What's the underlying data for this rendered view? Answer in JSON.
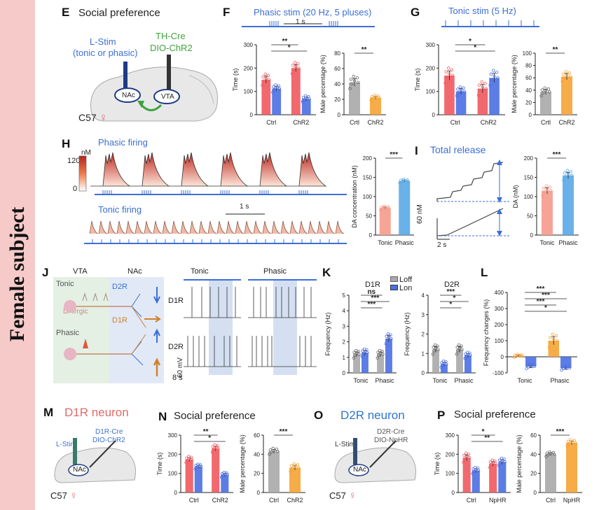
{
  "sidebar": {
    "title": "Female subject"
  },
  "panels": {
    "E": {
      "letter": "E",
      "title": "Social preference",
      "lstim": "L-Stim",
      "lstim_sub": "(tonic or phasic)",
      "cre": "TH-Cre",
      "dio": "DIO-ChR2",
      "nac": "NAc",
      "vta": "VTA",
      "mouse": "C57"
    },
    "F": {
      "letter": "F",
      "title": "Phasic stim (20 Hz, 5 pluses)",
      "scale": "1 s"
    },
    "G": {
      "letter": "G",
      "title": "Tonic stim (5 Hz)"
    },
    "H": {
      "letter": "H",
      "title": "Phasic firing",
      "unit": "nM",
      "cmax": "120",
      "cmin": "0",
      "tonic_title": "Tonic firing",
      "scale": "1 s"
    },
    "I": {
      "letter": "I",
      "title": "Total release",
      "scale_y": "60 nM",
      "scale_x": "2 s"
    },
    "J": {
      "letter": "J",
      "vta": "VTA",
      "nac": "NAc",
      "tonic": "Tonic",
      "phasic": "Phasic",
      "d2r": "D2R",
      "d1r": "D1R",
      "daergic": "DAergic",
      "col_tonic": "Tonic",
      "col_phasic": "Phasic",
      "row1": "D1R",
      "row2": "D2R",
      "scale_y": "60 mV",
      "scale_x": "8 s"
    },
    "K": {
      "letter": "K",
      "legend_off": "Loff",
      "legend_on": "Lon"
    },
    "L": {
      "letter": "L"
    },
    "M": {
      "letter": "M",
      "title": "D1R neuron",
      "lstim": "L-Stim",
      "cre": "D1R-Cre",
      "dio": "DIO-ChR2",
      "nac": "NAc",
      "mouse": "C57"
    },
    "N": {
      "letter": "N",
      "title": "Social preference"
    },
    "O": {
      "letter": "O",
      "title": "D2R neuron",
      "lstim": "L-Stim",
      "cre": "D2R-Cre",
      "dio": "DIO-NpHR",
      "nac": "NAc",
      "mouse": "C57"
    },
    "P": {
      "letter": "P",
      "title": "Social preference"
    }
  },
  "colors": {
    "red": "#f0595e",
    "blue": "#4a6fe3",
    "grey": "#a9a9a9",
    "orange": "#f5a334",
    "lightblue": "#59a8e6",
    "salmon": "#f59a8a"
  },
  "chart_data": [
    {
      "id": "F-time",
      "type": "bar",
      "categories": [
        "Ctrl",
        "ChR2"
      ],
      "ylabel": "Time (s)",
      "ylim": [
        0,
        300
      ],
      "yticks": [
        0,
        100,
        200,
        300
      ],
      "series": [
        {
          "values": [
            150,
            200
          ],
          "errors": [
            15,
            15
          ],
          "color": "#f0595e"
        },
        {
          "values": [
            112,
            68
          ],
          "errors": [
            10,
            8
          ],
          "color": "#4a6fe3"
        }
      ],
      "sig": [
        "**",
        "*"
      ]
    },
    {
      "id": "F-male",
      "type": "bar",
      "categories": [
        "Crtl",
        "ChR2"
      ],
      "ylabel": "Male percentage (%)",
      "ylim": [
        0,
        80
      ],
      "yticks": [
        0,
        20,
        40,
        60,
        80
      ],
      "series": [
        {
          "values": [
            42,
            22
          ],
          "errors": [
            5,
            2
          ],
          "colors": [
            "#a9a9a9",
            "#f5a334"
          ]
        }
      ],
      "sig": [
        "**"
      ]
    },
    {
      "id": "G-time",
      "type": "bar",
      "categories": [
        "Ctrl",
        "ChR2"
      ],
      "ylabel": "Time (s)",
      "ylim": [
        0,
        300
      ],
      "yticks": [
        0,
        100,
        200,
        300
      ],
      "series": [
        {
          "values": [
            168,
            112
          ],
          "errors": [
            20,
            18
          ],
          "color": "#f0595e"
        },
        {
          "values": [
            100,
            158
          ],
          "errors": [
            12,
            20
          ],
          "color": "#4a6fe3"
        }
      ],
      "sig": [
        "*",
        "*"
      ]
    },
    {
      "id": "G-male",
      "type": "bar",
      "categories": [
        "Crtl",
        "ChR2"
      ],
      "ylabel": "Male percentage (%)",
      "ylim": [
        0,
        100
      ],
      "yticks": [
        0,
        20,
        40,
        60,
        80,
        100
      ],
      "series": [
        {
          "values": [
            37,
            62
          ],
          "errors": [
            4,
            5
          ],
          "colors": [
            "#a9a9a9",
            "#f5a334"
          ]
        }
      ],
      "sig": [
        "**"
      ]
    },
    {
      "id": "H-conc",
      "type": "bar",
      "categories": [
        "Tonic",
        "Phasic"
      ],
      "ylabel": "DA concentration (nM)",
      "ylim": [
        0,
        200
      ],
      "yticks": [
        0,
        50,
        100,
        150,
        200
      ],
      "series": [
        {
          "values": [
            70,
            140
          ],
          "errors": [
            3,
            3
          ],
          "colors": [
            "#f59a8a",
            "#59a8e6"
          ]
        }
      ],
      "sig": [
        "***"
      ]
    },
    {
      "id": "I-da",
      "type": "bar",
      "categories": [
        "Tonic",
        "Phasic"
      ],
      "ylabel": "DA (nM)",
      "ylim": [
        0,
        200
      ],
      "yticks": [
        0,
        50,
        100,
        150,
        200
      ],
      "series": [
        {
          "values": [
            115,
            155
          ],
          "errors": [
            8,
            8
          ],
          "colors": [
            "#f59a8a",
            "#59a8e6"
          ]
        }
      ],
      "sig": [
        "***"
      ]
    },
    {
      "id": "K-d1r",
      "type": "bar",
      "title": "D1R",
      "categories": [
        "Tonic",
        "Phasic"
      ],
      "ylabel": "Frequency (Hz)",
      "ylim": [
        0,
        5
      ],
      "yticks": [
        0,
        1,
        2,
        3,
        4,
        5
      ],
      "series": [
        {
          "name": "Loff",
          "values": [
            1.2,
            1.2
          ],
          "errors": [
            0.15,
            0.15
          ],
          "color": "#a9a9a9"
        },
        {
          "name": "Lon",
          "values": [
            1.3,
            2.2
          ],
          "errors": [
            0.15,
            0.2
          ],
          "color": "#4a6fe3"
        }
      ],
      "sig": [
        "ns",
        "***",
        "***"
      ]
    },
    {
      "id": "K-d2r",
      "type": "bar",
      "title": "D2R",
      "categories": [
        "Tonic",
        "Phasic"
      ],
      "ylabel": "Frequency (Hz)",
      "ylim": [
        0,
        4
      ],
      "yticks": [
        0,
        1,
        2,
        3,
        4
      ],
      "series": [
        {
          "name": "Loff",
          "values": [
            1.2,
            1.2
          ],
          "errors": [
            0.15,
            0.15
          ],
          "color": "#a9a9a9"
        },
        {
          "name": "Lon",
          "values": [
            0.45,
            0.9
          ],
          "errors": [
            0.1,
            0.1
          ],
          "color": "#4a6fe3"
        }
      ],
      "sig": [
        "***",
        "*",
        "*"
      ]
    },
    {
      "id": "L-freq",
      "type": "bar",
      "categories": [
        "Tonic",
        "Phasic"
      ],
      "ylabel": "Frequency changes (%)",
      "ylim": [
        -100,
        400
      ],
      "yticks": [
        -100,
        0,
        100,
        200,
        300,
        400
      ],
      "series": [
        {
          "name": "D1R",
          "values": [
            5,
            100
          ],
          "errors": [
            6,
            25
          ],
          "color": "#f5a334"
        },
        {
          "name": "D2R",
          "values": [
            -60,
            -70
          ],
          "errors": [
            8,
            8
          ],
          "color": "#4a6fe3"
        }
      ],
      "sig": [
        "***",
        "***",
        "***",
        "*"
      ]
    },
    {
      "id": "N-time",
      "type": "bar",
      "categories": [
        "Ctrl",
        "ChR2"
      ],
      "ylabel": "Time (s)",
      "ylim": [
        0,
        300
      ],
      "yticks": [
        0,
        100,
        200,
        300
      ],
      "series": [
        {
          "values": [
            172,
            230
          ],
          "errors": [
            10,
            12
          ],
          "color": "#f0595e"
        },
        {
          "values": [
            135,
            92
          ],
          "errors": [
            8,
            8
          ],
          "color": "#4a6fe3"
        }
      ],
      "sig": [
        "**",
        "*"
      ]
    },
    {
      "id": "N-male",
      "type": "bar",
      "categories": [
        "Ctrl",
        "ChR2"
      ],
      "ylabel": "Male percentage (%)",
      "ylim": [
        0,
        60
      ],
      "yticks": [
        0,
        20,
        40,
        60
      ],
      "series": [
        {
          "values": [
            43,
            26
          ],
          "errors": [
            2,
            2.5
          ],
          "colors": [
            "#a9a9a9",
            "#f5a334"
          ]
        }
      ],
      "sig": [
        "***"
      ]
    },
    {
      "id": "P-time",
      "type": "bar",
      "categories": [
        "Ctrl",
        "NpHR"
      ],
      "ylabel": "Time (s)",
      "ylim": [
        0,
        300
      ],
      "yticks": [
        0,
        100,
        200,
        300
      ],
      "series": [
        {
          "values": [
            182,
            150
          ],
          "errors": [
            15,
            12
          ],
          "color": "#f0595e"
        },
        {
          "values": [
            115,
            160
          ],
          "errors": [
            10,
            12
          ],
          "color": "#4a6fe3"
        }
      ],
      "sig": [
        "*",
        "**"
      ]
    },
    {
      "id": "P-male",
      "type": "bar",
      "categories": [
        "Ctrl",
        "NpHR"
      ],
      "ylabel": "Male percentage (%)",
      "ylim": [
        0,
        60
      ],
      "yticks": [
        0,
        20,
        40,
        60
      ],
      "series": [
        {
          "values": [
            40,
            52
          ],
          "errors": [
            1.5,
            2
          ],
          "colors": [
            "#a9a9a9",
            "#f5a334"
          ]
        }
      ],
      "sig": [
        "***"
      ]
    }
  ]
}
